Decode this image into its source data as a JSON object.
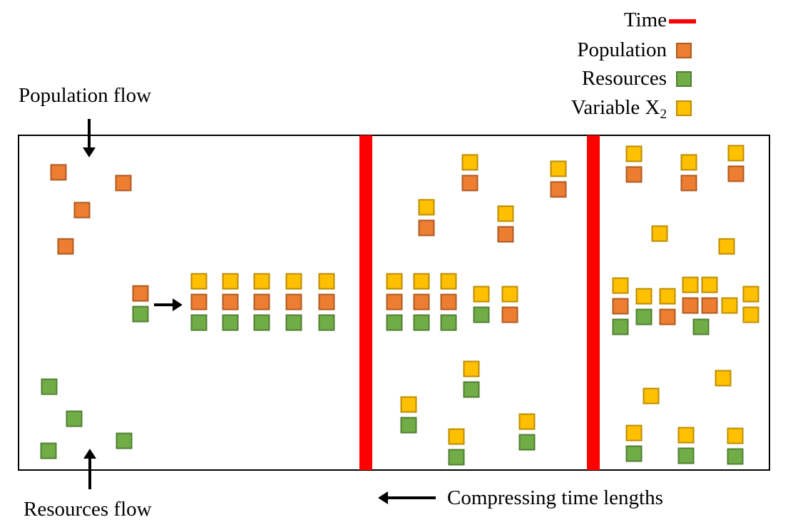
{
  "colors": {
    "time": "#ff0000",
    "population_fill": "#ed7d31",
    "population_border": "#ae5a21",
    "resources_fill": "#70ad47",
    "resources_border": "#507e32",
    "variable_fill": "#ffc000",
    "variable_border": "#bc8c00"
  },
  "legend": {
    "time": "Time",
    "population": "Population",
    "resources": "Resources",
    "variable_prefix": "Variable X",
    "variable_subscript": "2"
  },
  "labels": {
    "population_flow": "Population flow",
    "resources_flow": "Resources flow",
    "compressing": "Compressing time lengths"
  }
}
